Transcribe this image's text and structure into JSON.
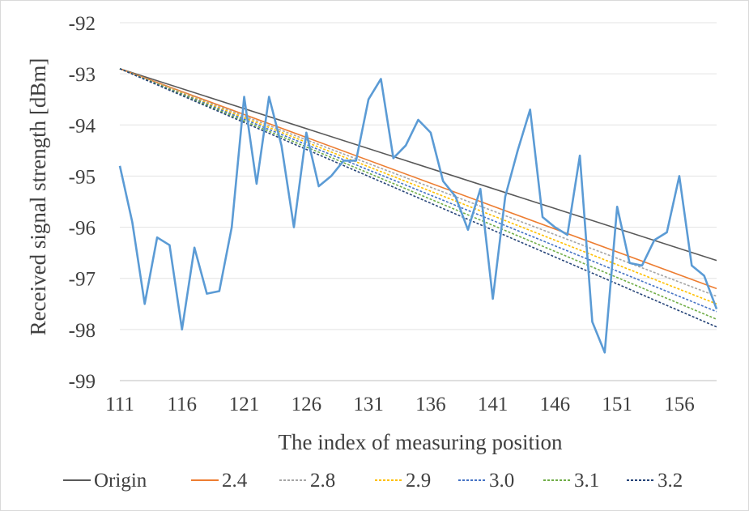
{
  "chart_data": {
    "type": "line",
    "title": "",
    "xlabel": "The index of measuring position",
    "ylabel": "Received signal strength [dBm]",
    "xlim": [
      111,
      159
    ],
    "ylim": [
      -99,
      -92
    ],
    "x_ticks": [
      "111",
      "116",
      "121",
      "126",
      "131",
      "136",
      "141",
      "146",
      "151",
      "156"
    ],
    "y_ticks": [
      "-92",
      "-93",
      "-94",
      "-95",
      "-96",
      "-97",
      "-98",
      "-99"
    ],
    "grid": true,
    "legend_position": "bottom",
    "measured": {
      "color": "#5b9bd5",
      "x": [
        111,
        112,
        113,
        114,
        115,
        116,
        117,
        118,
        119,
        120,
        121,
        122,
        123,
        124,
        125,
        126,
        127,
        128,
        129,
        130,
        131,
        132,
        133,
        134,
        135,
        136,
        137,
        138,
        139,
        140,
        141,
        142,
        143,
        144,
        145,
        146,
        147,
        148,
        149,
        150,
        151,
        152,
        153,
        154,
        155,
        156,
        157,
        158,
        159
      ],
      "values": [
        -94.8,
        -95.9,
        -97.5,
        -96.2,
        -96.35,
        -98.0,
        -96.4,
        -97.3,
        -97.25,
        -96.0,
        -93.45,
        -95.15,
        -93.45,
        -94.4,
        -96.0,
        -94.15,
        -95.2,
        -95.0,
        -94.7,
        -94.7,
        -93.5,
        -93.1,
        -94.65,
        -94.4,
        -93.9,
        -94.15,
        -95.1,
        -95.4,
        -96.05,
        -95.25,
        -97.4,
        -95.4,
        -94.5,
        -93.7,
        -95.8,
        -96.0,
        -96.15,
        -94.6,
        -97.85,
        -98.45,
        -95.6,
        -96.7,
        -96.75,
        -96.25,
        -96.1,
        -95.0,
        -96.75,
        -96.95,
        -97.6
      ]
    },
    "series": [
      {
        "name": "Origin",
        "dash": "solid",
        "color": "#595959",
        "x": [
          111,
          159
        ],
        "values": [
          -92.9,
          -96.65
        ]
      },
      {
        "name": "2.4",
        "dash": "solid",
        "color": "#ed7d31",
        "x": [
          111,
          159
        ],
        "values": [
          -92.9,
          -97.2
        ]
      },
      {
        "name": "2.8",
        "dash": "dot",
        "color": "#a5a5a5",
        "x": [
          111,
          159
        ],
        "values": [
          -92.9,
          -97.35
        ]
      },
      {
        "name": "2.9",
        "dash": "dot",
        "color": "#ffc000",
        "x": [
          111,
          159
        ],
        "values": [
          -92.9,
          -97.5
        ]
      },
      {
        "name": "3.0",
        "dash": "dot",
        "color": "#4472c4",
        "x": [
          111,
          159
        ],
        "values": [
          -92.9,
          -97.65
        ]
      },
      {
        "name": "3.1",
        "dash": "dot",
        "color": "#70ad47",
        "x": [
          111,
          159
        ],
        "values": [
          -92.9,
          -97.8
        ]
      },
      {
        "name": "3.2",
        "dash": "dot",
        "color": "#264478",
        "x": [
          111,
          159
        ],
        "values": [
          -92.9,
          -97.95
        ]
      }
    ]
  }
}
